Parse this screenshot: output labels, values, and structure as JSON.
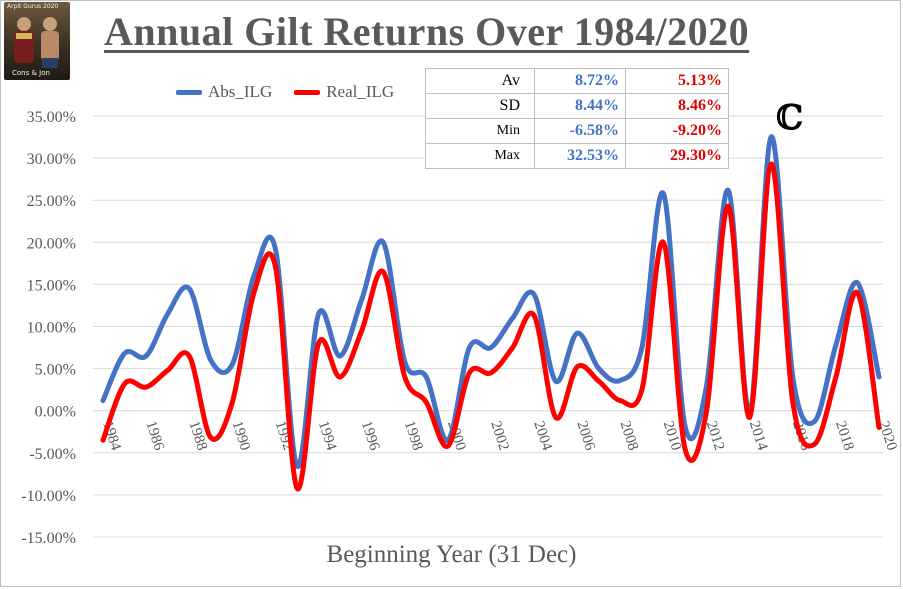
{
  "title": "Annual Gilt Returns Over 1984/2020",
  "logo": {
    "top_text": "Arpit Gurus 2020",
    "bottom_text": "Cons & Jon",
    "icon": "two-figures-photo-icon"
  },
  "annotation": "ℂ",
  "stats_table": {
    "rows": [
      {
        "label": "Av",
        "abs": "8.72%",
        "real": "5.13%"
      },
      {
        "label": "SD",
        "abs": "8.44%",
        "real": "8.46%"
      },
      {
        "label": "Min",
        "abs": "-6.58%",
        "real": "-9.20%"
      },
      {
        "label": "Max",
        "abs": "32.53%",
        "real": "29.30%"
      }
    ]
  },
  "colors": {
    "abs": "#4472c4",
    "real": "#ff0000",
    "gridline": "#d9d9d9",
    "axis_text": "#595959"
  },
  "chart_data": {
    "type": "line",
    "smooth": true,
    "title": "Annual Gilt Returns Over 1984/2020",
    "xlabel": "Beginning Year (31 Dec)",
    "ylabel": "",
    "ylim": [
      -0.15,
      0.35
    ],
    "yticks": [
      0.35,
      0.3,
      0.25,
      0.2,
      0.15,
      0.1,
      0.05,
      0.0,
      -0.05,
      -0.1,
      -0.15
    ],
    "ytick_labels": [
      "35.00%",
      "30.00%",
      "25.00%",
      "20.00%",
      "15.00%",
      "10.00%",
      "5.00%",
      "0.00%",
      "-5.00%",
      "-10.00%",
      "-15.00%"
    ],
    "x": [
      1984,
      1985,
      1986,
      1987,
      1988,
      1989,
      1990,
      1991,
      1992,
      1993,
      1994,
      1995,
      1996,
      1997,
      1998,
      1999,
      2000,
      2001,
      2002,
      2003,
      2004,
      2005,
      2006,
      2007,
      2008,
      2009,
      2010,
      2011,
      2012,
      2013,
      2014,
      2015,
      2016,
      2017,
      2018,
      2019,
      2020
    ],
    "xticks": [
      "1984",
      "1986",
      "1988",
      "1990",
      "1992",
      "1994",
      "1996",
      "1998",
      "2000",
      "2002",
      "2004",
      "2006",
      "2008",
      "2010",
      "2012",
      "2014",
      "2016",
      "2018",
      "2020"
    ],
    "grid": true,
    "legend": "top-left",
    "series": [
      {
        "name": "Abs_ILG",
        "values": [
          0.012,
          0.068,
          0.065,
          0.115,
          0.145,
          0.06,
          0.055,
          0.16,
          0.192,
          -0.0658,
          0.115,
          0.065,
          0.132,
          0.2,
          0.058,
          0.04,
          -0.035,
          0.075,
          0.075,
          0.11,
          0.138,
          0.035,
          0.092,
          0.05,
          0.036,
          0.075,
          0.258,
          -0.018,
          0.03,
          0.262,
          -0.002,
          0.3253,
          0.04,
          -0.013,
          0.078,
          0.152,
          0.04
        ]
      },
      {
        "name": "Real_ILG",
        "values": [
          -0.035,
          0.032,
          0.028,
          0.048,
          0.065,
          -0.032,
          0.01,
          0.14,
          0.171,
          -0.092,
          0.08,
          0.04,
          0.095,
          0.165,
          0.04,
          0.01,
          -0.042,
          0.045,
          0.045,
          0.075,
          0.113,
          -0.008,
          0.052,
          0.035,
          0.012,
          0.025,
          0.2,
          -0.045,
          0.0,
          0.243,
          -0.008,
          0.293,
          0.01,
          -0.04,
          0.04,
          0.14,
          -0.02
        ]
      }
    ]
  }
}
